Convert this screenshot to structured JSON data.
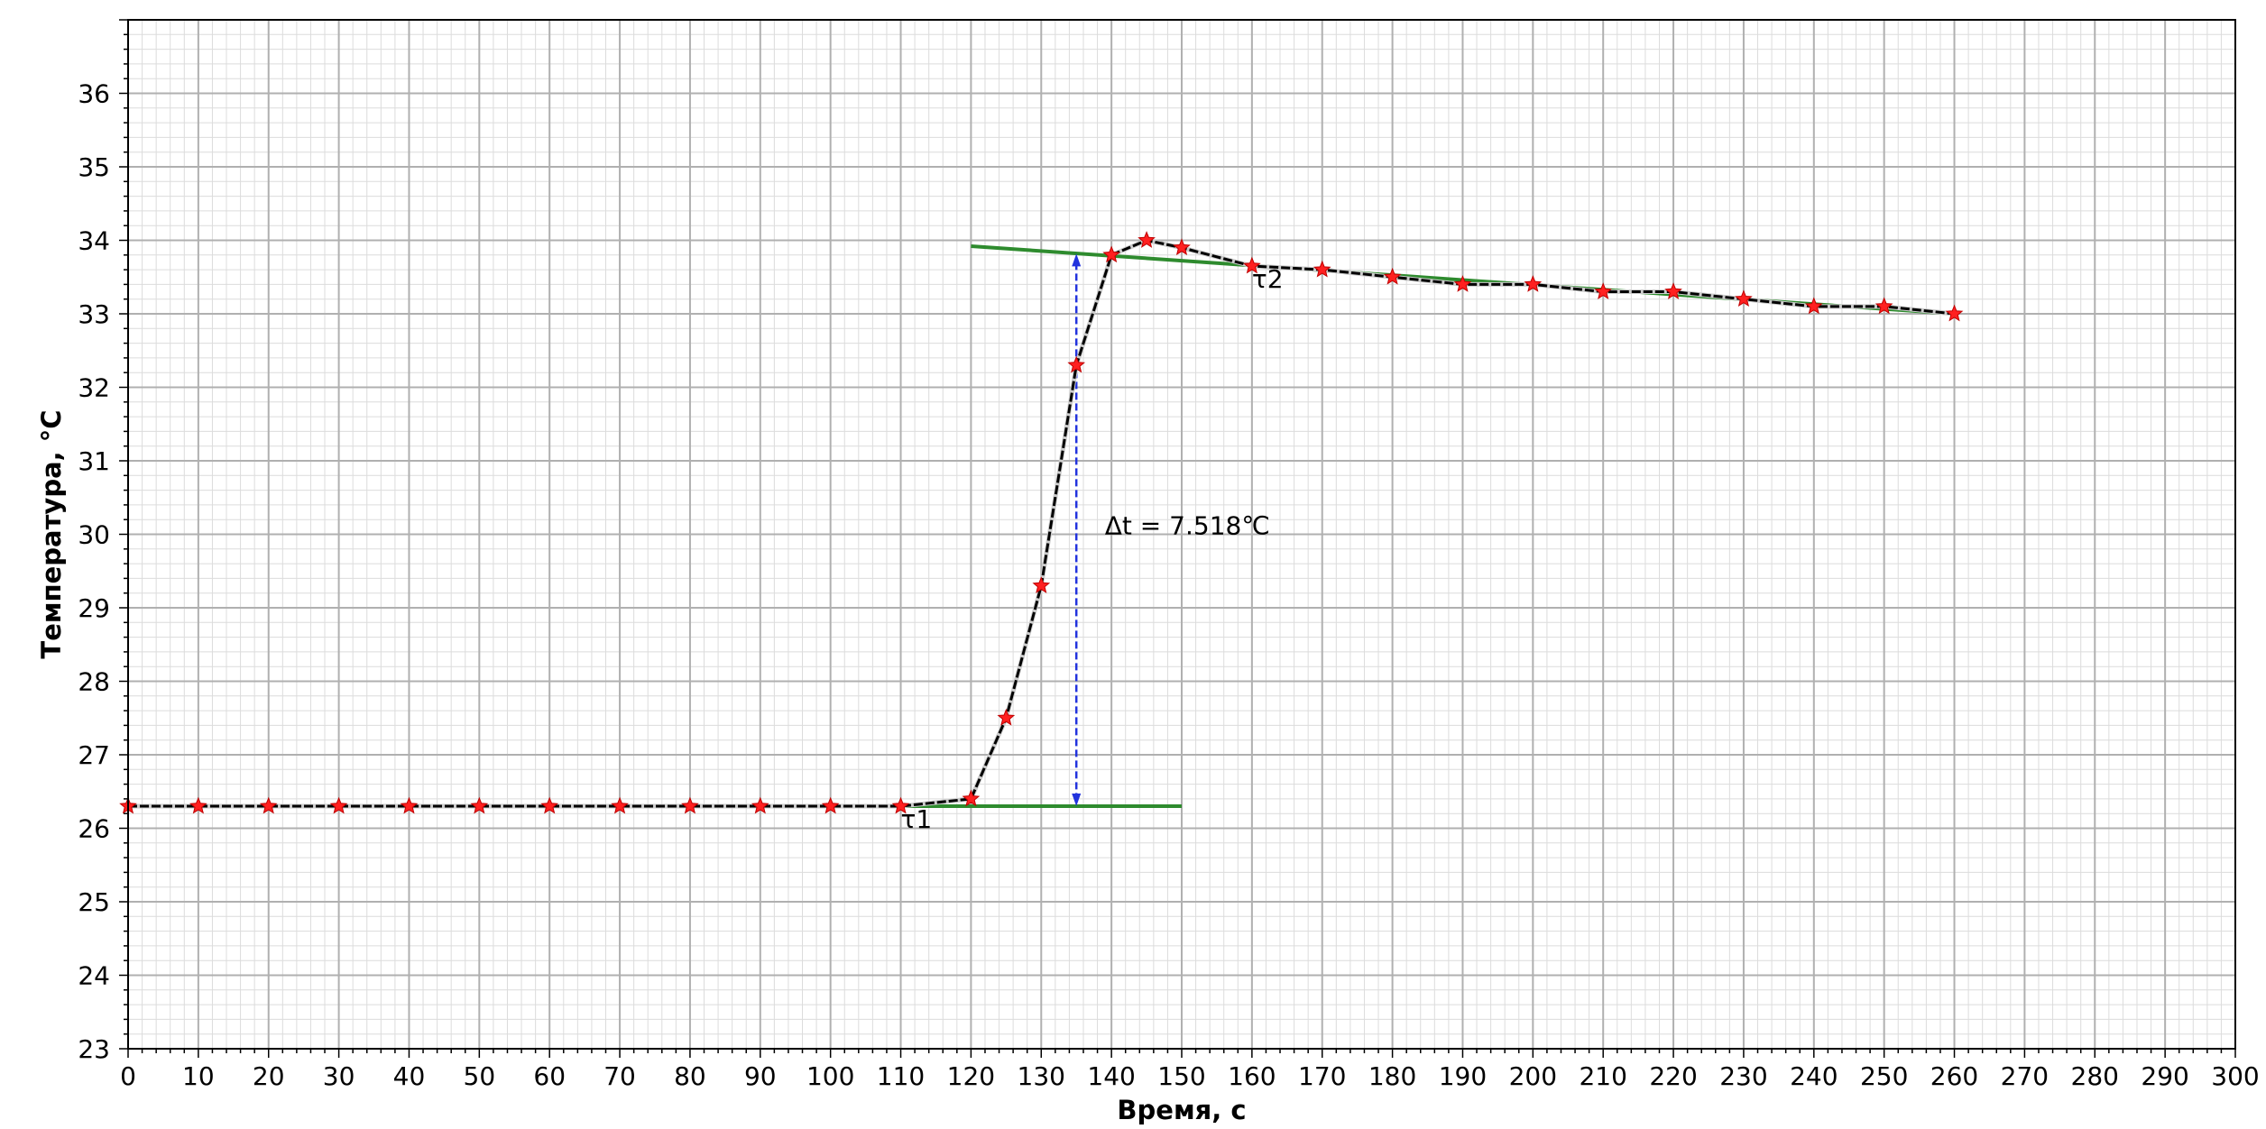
{
  "chart_data": {
    "type": "line",
    "xlabel": "Время, с",
    "ylabel": "Температура, °C",
    "xlim": [
      0,
      300
    ],
    "ylim": [
      23,
      37
    ],
    "x_major_ticks": [
      0,
      10,
      20,
      30,
      40,
      50,
      60,
      70,
      80,
      90,
      100,
      110,
      120,
      130,
      140,
      150,
      160,
      170,
      180,
      190,
      200,
      210,
      220,
      230,
      240,
      250,
      260,
      270,
      280,
      290,
      300
    ],
    "y_major_ticks": [
      23,
      24,
      25,
      26,
      27,
      28,
      29,
      30,
      31,
      32,
      33,
      34,
      35,
      36
    ],
    "grid": true,
    "minor_grid": true,
    "series": [
      {
        "role": "measurements",
        "style": "black dashed line with red star markers",
        "x": [
          0,
          10,
          20,
          30,
          40,
          50,
          60,
          70,
          80,
          90,
          100,
          110,
          120,
          125,
          130,
          135,
          140,
          145,
          150,
          160,
          170,
          180,
          190,
          200,
          210,
          220,
          230,
          240,
          250,
          260
        ],
        "y": [
          26.3,
          26.3,
          26.3,
          26.3,
          26.3,
          26.3,
          26.3,
          26.3,
          26.3,
          26.3,
          26.3,
          26.3,
          26.4,
          27.5,
          29.3,
          32.3,
          33.8,
          34.0,
          33.9,
          33.65,
          33.6,
          33.5,
          33.4,
          33.4,
          33.3,
          33.3,
          33.2,
          33.1,
          33.1,
          33.0
        ]
      },
      {
        "role": "pre-period fit",
        "style": "green line",
        "x": [
          0,
          150
        ],
        "y": [
          26.3,
          26.3
        ]
      },
      {
        "role": "post-period fit",
        "style": "green line",
        "x": [
          120,
          260
        ],
        "y": [
          33.92,
          33.0
        ]
      }
    ],
    "annotations": [
      {
        "text": "τ1",
        "x": 110,
        "y": 26.3
      },
      {
        "text": "τ2",
        "x": 160,
        "y": 33.65
      },
      {
        "text": "Δt = 7.518℃",
        "x": 137,
        "y": 30.15
      }
    ],
    "delta_arrow": {
      "x": 135,
      "y_from": 26.3,
      "y_to": 33.818
    },
    "colors": {
      "measurement_line": "#000000",
      "marker": "#ff2020",
      "fit_line": "#2e8b2e",
      "arrow": "#2233dd",
      "grid_major": "#b0b0b0",
      "grid_minor": "#dcdcdc"
    }
  }
}
